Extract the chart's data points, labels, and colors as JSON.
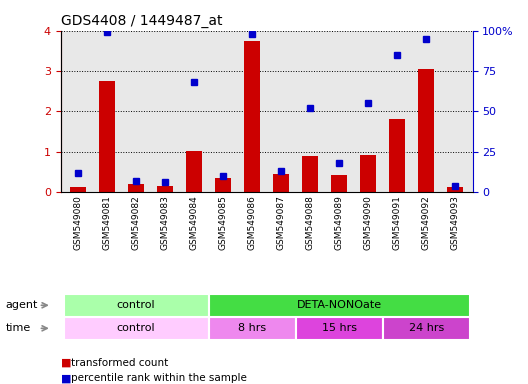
{
  "title": "GDS4408 / 1449487_at",
  "samples": [
    "GSM549080",
    "GSM549081",
    "GSM549082",
    "GSM549083",
    "GSM549084",
    "GSM549085",
    "GSM549086",
    "GSM549087",
    "GSM549088",
    "GSM549089",
    "GSM549090",
    "GSM549091",
    "GSM549092",
    "GSM549093"
  ],
  "red_values": [
    0.13,
    2.75,
    0.2,
    0.15,
    1.02,
    0.35,
    3.75,
    0.45,
    0.9,
    0.42,
    0.92,
    1.8,
    3.05,
    0.12
  ],
  "blue_values": [
    12,
    99,
    7,
    6,
    68,
    10,
    98,
    13,
    52,
    18,
    55,
    85,
    95,
    4
  ],
  "ylim_left": [
    0,
    4
  ],
  "ylim_right": [
    0,
    100
  ],
  "yticks_left": [
    0,
    1,
    2,
    3,
    4
  ],
  "yticks_right": [
    0,
    25,
    50,
    75,
    100
  ],
  "yticklabels_right": [
    "0",
    "25",
    "50",
    "75",
    "100%"
  ],
  "bar_color": "#cc0000",
  "dot_color": "#0000cc",
  "bg_color_main": "#e8e8e8",
  "bg_color_fig": "#ffffff",
  "agent_row": {
    "groups": [
      {
        "label": "control",
        "start": 0,
        "end": 5,
        "color": "#aaffaa"
      },
      {
        "label": "DETA-NONOate",
        "start": 5,
        "end": 14,
        "color": "#44dd44"
      }
    ]
  },
  "time_row": {
    "groups": [
      {
        "label": "control",
        "start": 0,
        "end": 5,
        "color": "#ffccff"
      },
      {
        "label": "8 hrs",
        "start": 5,
        "end": 8,
        "color": "#ee88ee"
      },
      {
        "label": "15 hrs",
        "start": 8,
        "end": 11,
        "color": "#dd44dd"
      },
      {
        "label": "24 hrs",
        "start": 11,
        "end": 14,
        "color": "#cc44cc"
      }
    ]
  },
  "legend_items": [
    {
      "label": "transformed count",
      "color": "#cc0000"
    },
    {
      "label": "percentile rank within the sample",
      "color": "#0000cc"
    }
  ]
}
